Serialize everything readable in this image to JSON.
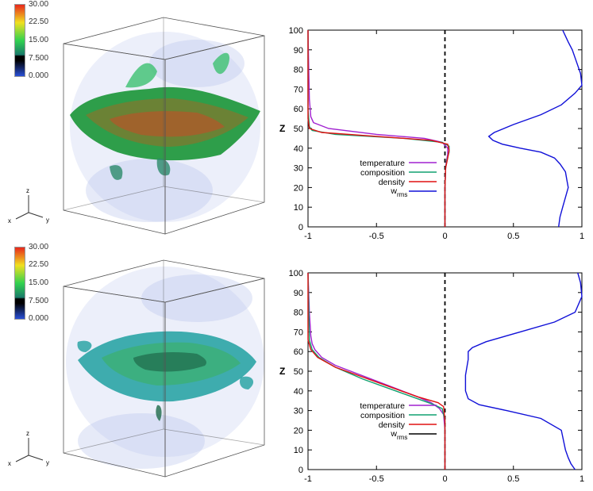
{
  "colorbar": {
    "ticks": [
      "30.00",
      "22.50",
      "15.00",
      "7.500",
      "0.000"
    ],
    "colors": [
      "#e8281c",
      "#f0e020",
      "#32d250",
      "#1a7a6a",
      "#2a50d8",
      "#000000"
    ]
  },
  "axes_triad": {
    "z": "z",
    "x": "x",
    "y": "y"
  },
  "chart_data": [
    {
      "type": "line",
      "ylabel": "Z",
      "xlim": [
        -1,
        1
      ],
      "ylim": [
        0,
        100
      ],
      "xticks": [
        "-1",
        "-0.5",
        "0",
        "0.5",
        "1"
      ],
      "yticks": [
        "0",
        "10",
        "20",
        "30",
        "40",
        "50",
        "60",
        "70",
        "80",
        "90",
        "100"
      ],
      "reference_line_x": 0,
      "legend": {
        "entries": [
          "temperature",
          "composition",
          "density"
        ],
        "wrms_label": "w",
        "wrms_sub": "rms",
        "wrms_color": "#1010d8"
      },
      "series": [
        {
          "name": "temperature",
          "color": "#a020d0",
          "x": [
            0,
            0,
            0,
            0.005,
            0.01,
            0.02,
            0.02,
            -0.02,
            -0.15,
            -0.5,
            -0.85,
            -0.96,
            -0.98,
            -0.99,
            -0.995,
            -1
          ],
          "y": [
            0,
            10,
            20,
            30,
            33,
            37,
            40,
            43,
            45,
            47,
            50,
            53,
            56,
            65,
            80,
            100
          ]
        },
        {
          "name": "composition",
          "color": "#10a070",
          "x": [
            0,
            0,
            0,
            0.005,
            0.015,
            0.03,
            0.03,
            -0.02,
            -0.3,
            -0.8,
            -0.97,
            -0.99,
            -1,
            -1
          ],
          "y": [
            0,
            10,
            20,
            30,
            34,
            38,
            41,
            43,
            45,
            47,
            49,
            51,
            60,
            100
          ]
        },
        {
          "name": "density",
          "color": "#e01010",
          "x": [
            0,
            0,
            0,
            0.005,
            0.02,
            0.03,
            0.02,
            -0.1,
            -0.5,
            -0.9,
            -0.99,
            -1,
            -1
          ],
          "y": [
            0,
            10,
            20,
            30,
            35,
            39,
            42,
            44,
            46,
            48,
            50,
            55,
            100
          ]
        },
        {
          "name": "wrms",
          "color": "#1010d8",
          "x": [
            0.83,
            0.84,
            0.86,
            0.88,
            0.9,
            0.89,
            0.88,
            0.84,
            0.8,
            0.7,
            0.55,
            0.42,
            0.35,
            0.32,
            0.36,
            0.5,
            0.7,
            0.85,
            0.95,
            1.0,
            0.99,
            0.96,
            0.93,
            0.9,
            0.88,
            0.86
          ],
          "y": [
            0,
            5,
            10,
            15,
            20,
            24,
            28,
            32,
            35,
            38,
            40,
            42,
            44,
            46,
            48,
            52,
            57,
            62,
            68,
            72,
            78,
            84,
            90,
            94,
            97,
            100
          ]
        }
      ]
    },
    {
      "type": "line",
      "ylabel": "Z",
      "xlim": [
        -1,
        1
      ],
      "ylim": [
        0,
        100
      ],
      "xticks": [
        "-1",
        "-0.5",
        "0",
        "0.5",
        "1"
      ],
      "yticks": [
        "0",
        "10",
        "20",
        "30",
        "40",
        "50",
        "60",
        "70",
        "80",
        "90",
        "100"
      ],
      "reference_line_x": 0,
      "legend": {
        "entries": [
          "temperature",
          "composition",
          "density"
        ],
        "wrms_label": "w",
        "wrms_sub": "rms",
        "wrms_color": "#000000"
      },
      "series": [
        {
          "name": "temperature",
          "color": "#a020d0",
          "x": [
            0,
            0,
            -0.01,
            -0.04,
            -0.1,
            -0.2,
            -0.35,
            -0.5,
            -0.65,
            -0.8,
            -0.9,
            -0.95,
            -0.97,
            -0.98,
            -0.99,
            -1
          ],
          "y": [
            0,
            20,
            28,
            31,
            34,
            37,
            41,
            45,
            49,
            53,
            57,
            61,
            64,
            68,
            80,
            100
          ]
        },
        {
          "name": "composition",
          "color": "#10a070",
          "x": [
            0,
            0,
            -0.02,
            -0.08,
            -0.2,
            -0.4,
            -0.6,
            -0.8,
            -0.92,
            -0.97,
            -0.99,
            -1
          ],
          "y": [
            0,
            25,
            31,
            33,
            36,
            41,
            46,
            52,
            57,
            61,
            66,
            100
          ]
        },
        {
          "name": "density",
          "color": "#e01010",
          "x": [
            0,
            0,
            -0.01,
            -0.05,
            -0.2,
            -0.4,
            -0.6,
            -0.8,
            -0.93,
            -0.98,
            -1,
            -1
          ],
          "y": [
            0,
            25,
            32,
            34,
            37,
            42,
            47,
            52,
            57,
            61,
            66,
            100
          ]
        },
        {
          "name": "wrms",
          "color": "#1010d8",
          "x": [
            0.95,
            0.92,
            0.9,
            0.88,
            0.85,
            0.7,
            0.45,
            0.25,
            0.17,
            0.15,
            0.15,
            0.17,
            0.17,
            0.2,
            0.3,
            0.55,
            0.8,
            0.95,
            1.0,
            0.99,
            0.97
          ],
          "y": [
            0,
            3,
            6,
            10,
            20,
            26,
            30,
            33,
            36,
            40,
            48,
            56,
            60,
            62,
            65,
            70,
            75,
            80,
            88,
            95,
            100
          ]
        }
      ]
    }
  ]
}
